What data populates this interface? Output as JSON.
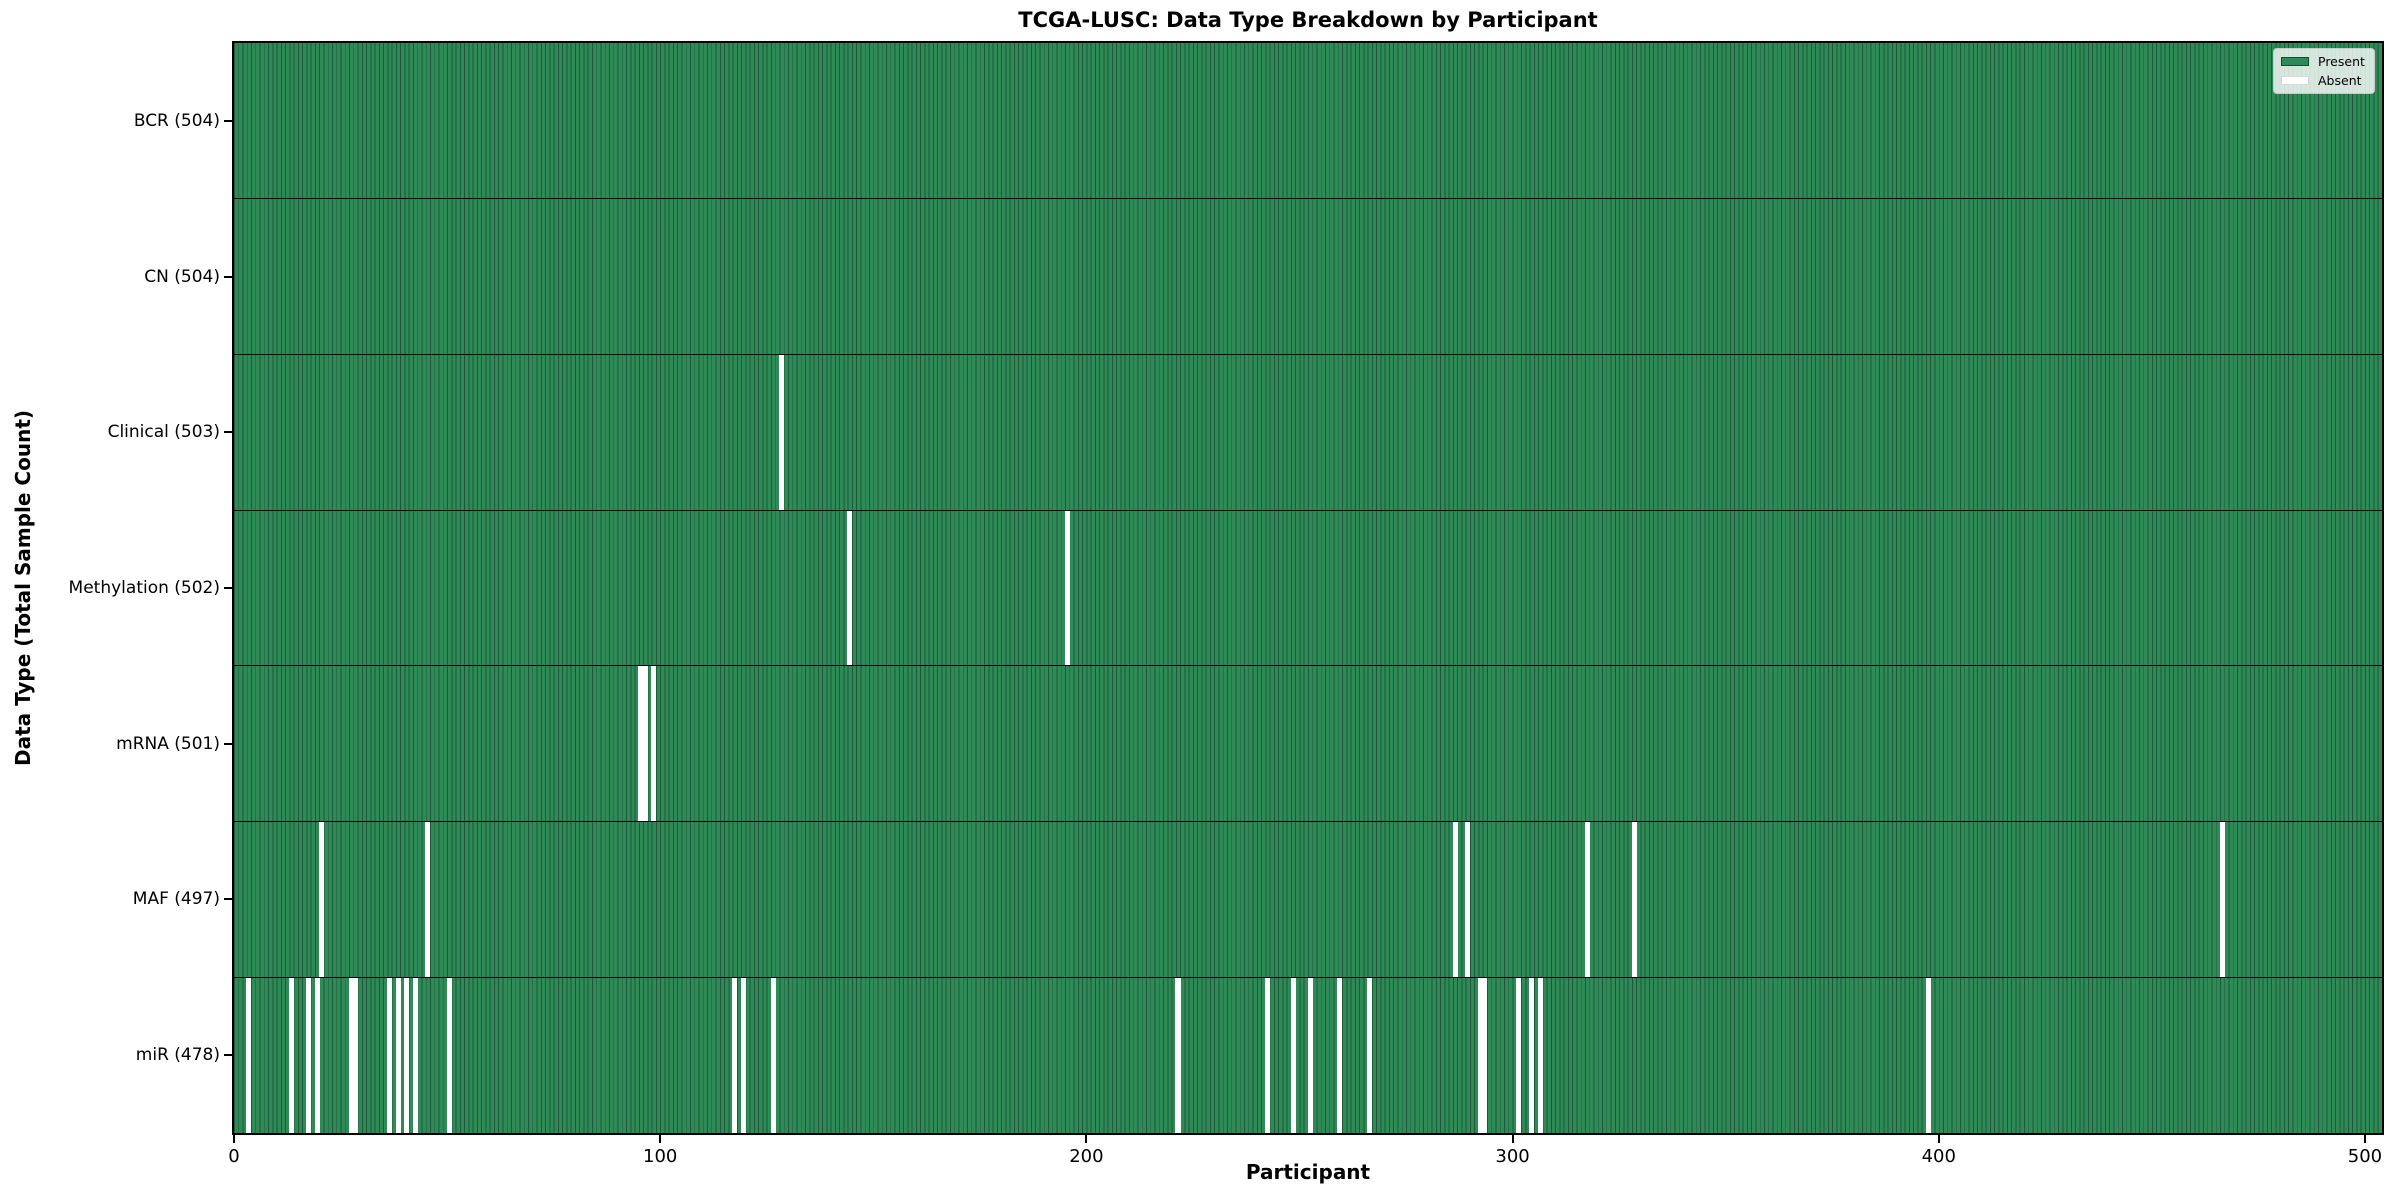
{
  "chart_data": {
    "type": "heatmap",
    "title": "TCGA-LUSC: Data Type Breakdown by Participant",
    "xlabel": "Participant",
    "ylabel": "Data Type (Total Sample Count)",
    "x_ticks": [
      0,
      100,
      200,
      300,
      400,
      500
    ],
    "x_max": 504,
    "n_participants": 504,
    "grid": false,
    "legend_position": "upper-right",
    "legend": [
      {
        "label": "Present",
        "color": "#2e8b57"
      },
      {
        "label": "Absent",
        "color": "#ffffff"
      }
    ],
    "colors": {
      "present": "#2e8b57",
      "absent": "#ffffff",
      "bar_edge": "#1e5839",
      "spine": "#000000",
      "legend_border": "#c9c9c9"
    },
    "rows": [
      {
        "name": "BCR",
        "label": "BCR (504)",
        "total": 504,
        "absent_participants": []
      },
      {
        "name": "CN",
        "label": "CN (504)",
        "total": 504,
        "absent_participants": []
      },
      {
        "name": "Clinical",
        "label": "Clinical (503)",
        "total": 503,
        "absent_participants": [
          128
        ]
      },
      {
        "name": "Methylation",
        "label": "Methylation (502)",
        "total": 502,
        "absent_participants": [
          144,
          195
        ]
      },
      {
        "name": "mRNA",
        "label": "mRNA (501)",
        "total": 501,
        "absent_participants": [
          95,
          96,
          98
        ]
      },
      {
        "name": "MAF",
        "label": "MAF (497)",
        "total": 497,
        "absent_participants": [
          20,
          45,
          286,
          289,
          317,
          328,
          466
        ]
      },
      {
        "name": "miR",
        "label": "miR (478)",
        "total": 478,
        "absent_participants": [
          3,
          13,
          17,
          19,
          27,
          28,
          36,
          38,
          40,
          42,
          50,
          117,
          119,
          126,
          221,
          242,
          248,
          252,
          259,
          266,
          292,
          293,
          301,
          304,
          306,
          397
        ]
      }
    ]
  }
}
